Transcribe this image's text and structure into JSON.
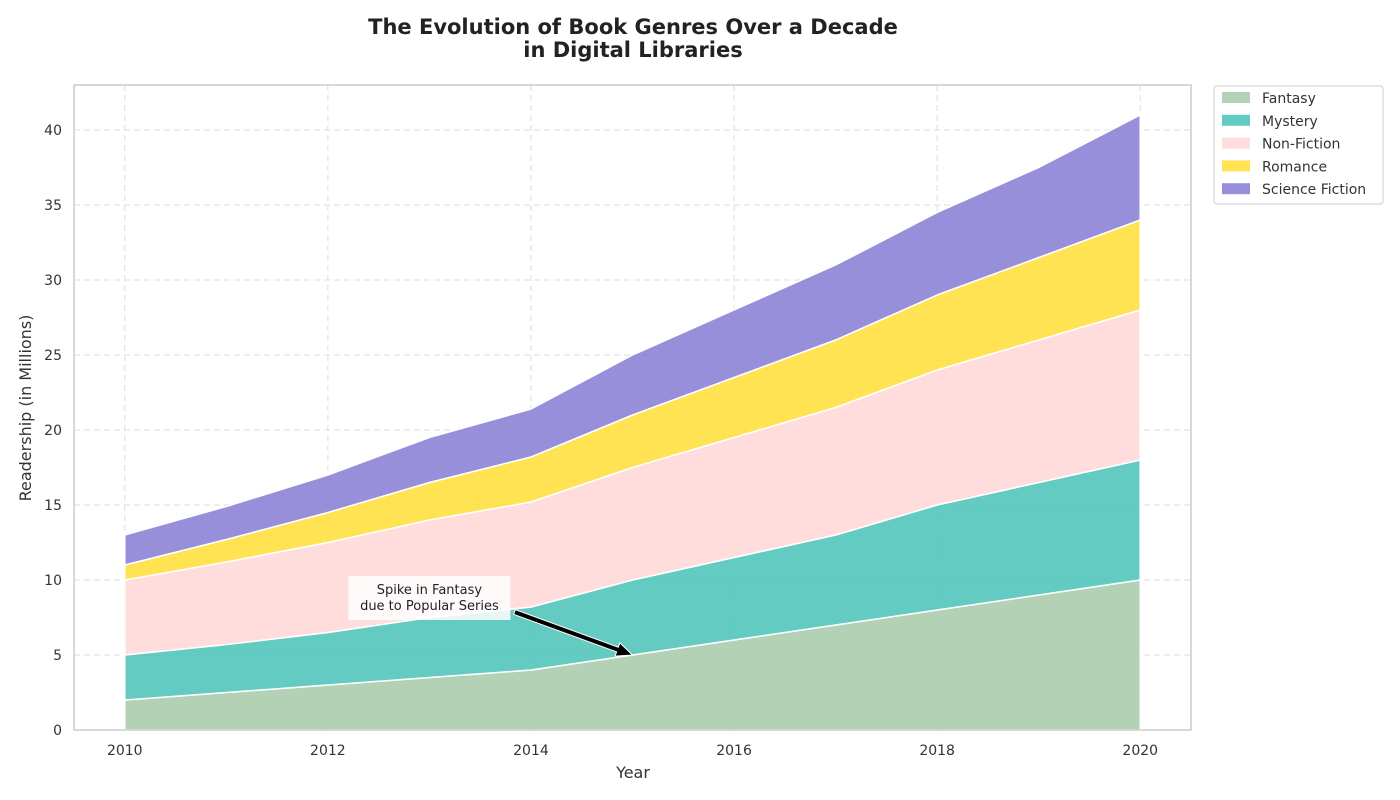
{
  "chart_data": {
    "type": "area",
    "stacked": true,
    "title": [
      "The Evolution of Book Genres Over a Decade",
      "in Digital Libraries"
    ],
    "xlabel": "Year",
    "ylabel": "Readership (in Millions)",
    "x": [
      2010,
      2011,
      2012,
      2013,
      2014,
      2015,
      2016,
      2017,
      2018,
      2019,
      2020
    ],
    "xticks": [
      "2010",
      "2012",
      "2014",
      "2016",
      "2018",
      "2020"
    ],
    "yticks": [
      "0",
      "5",
      "10",
      "15",
      "20",
      "25",
      "30",
      "35",
      "40"
    ],
    "xlim": [
      2009.5,
      2020.5
    ],
    "ylim": [
      0,
      43
    ],
    "grid": true,
    "legend_position": "outside-top-right",
    "series": [
      {
        "name": "Fantasy",
        "color": "#a8ccab",
        "values": [
          2,
          2.5,
          3,
          3.5,
          4,
          5,
          6,
          7,
          8,
          9,
          10
        ]
      },
      {
        "name": "Mystery",
        "color": "#4fc4ba",
        "values": [
          3,
          3.2,
          3.5,
          4,
          4.2,
          5,
          5.5,
          6,
          7,
          7.5,
          8
        ]
      },
      {
        "name": "Non-Fiction",
        "color": "#ffd8d8",
        "values": [
          5,
          5.5,
          6,
          6.5,
          7,
          7.5,
          8,
          8.5,
          9,
          9.5,
          10
        ]
      },
      {
        "name": "Romance",
        "color": "#ffdf3a",
        "values": [
          1,
          1.5,
          2,
          2.5,
          3,
          3.5,
          4,
          4.5,
          5,
          5.5,
          6
        ]
      },
      {
        "name": "Science Fiction",
        "color": "#8a7fd6",
        "values": [
          2,
          2.2,
          2.5,
          3,
          3.2,
          4,
          4.5,
          5,
          5.5,
          6,
          7
        ]
      }
    ],
    "annotation": {
      "text": [
        "Spike in Fantasy",
        "due to Popular Series"
      ],
      "text_at": [
        2013,
        8.8
      ],
      "arrow_to": [
        2015,
        5
      ]
    }
  }
}
